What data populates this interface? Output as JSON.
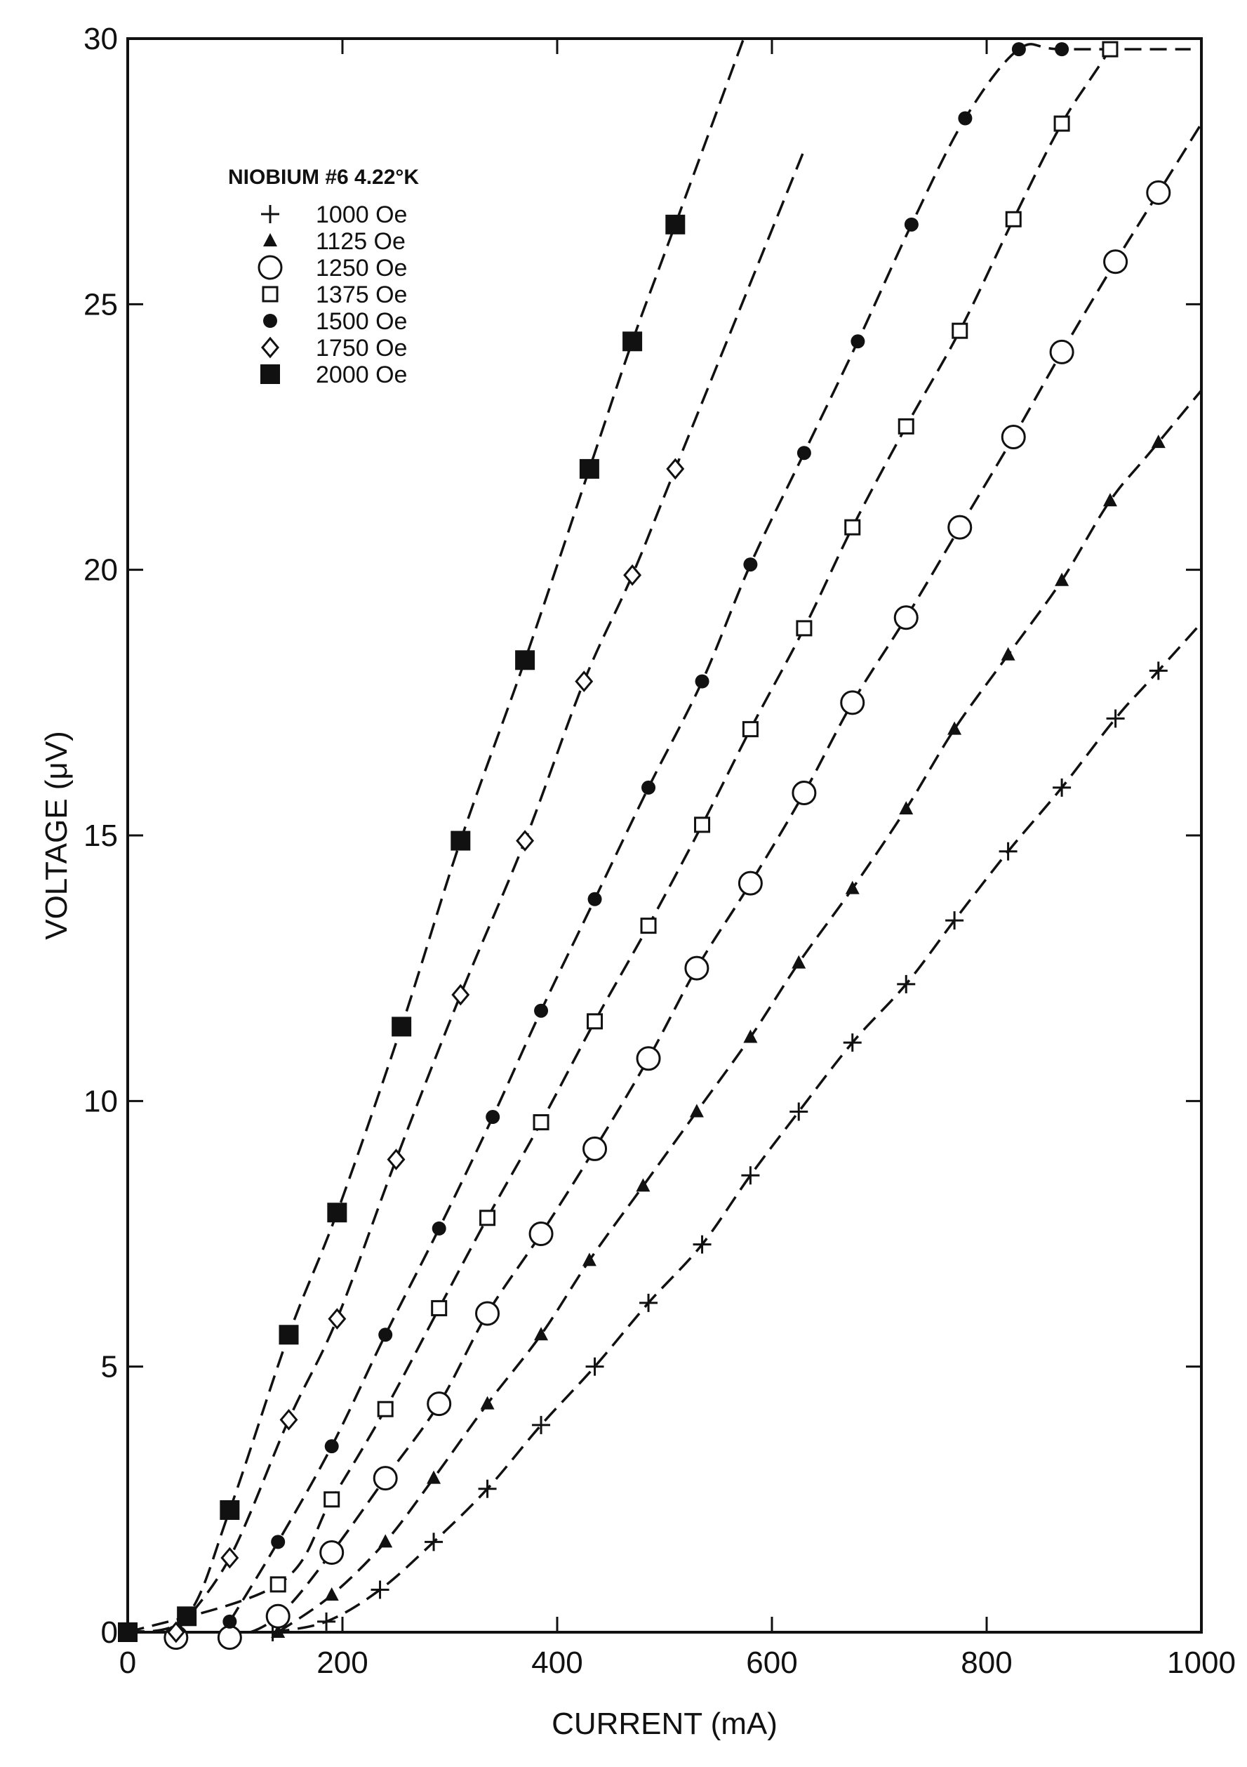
{
  "chart_data": {
    "type": "scatter",
    "title": "",
    "xlabel": "CURRENT (mA)",
    "ylabel": "VOLTAGE (μV)",
    "xlim": [
      0,
      1000
    ],
    "ylim": [
      0,
      30
    ],
    "xticks": [
      "0",
      "200",
      "400",
      "600",
      "800",
      "1000"
    ],
    "yticks": [
      "0",
      "5",
      "10",
      "15",
      "20",
      "25",
      "30"
    ],
    "grid": false,
    "legend_position": "top-left",
    "legend_title": "NIOBIUM #6  4.22°K",
    "series": [
      {
        "name": "1000 Oe",
        "marker": "cross",
        "x": [
          135,
          185,
          235,
          285,
          335,
          385,
          435,
          485,
          535,
          580,
          625,
          675,
          725,
          770,
          820,
          870,
          920,
          960
        ],
        "y": [
          0.0,
          0.2,
          0.8,
          1.7,
          2.7,
          3.9,
          5.0,
          6.2,
          7.3,
          8.6,
          9.8,
          11.1,
          12.2,
          13.4,
          14.7,
          15.9,
          17.2,
          18.1
        ]
      },
      {
        "name": "1125 Oe",
        "marker": "triangle-filled",
        "x": [
          140,
          190,
          240,
          285,
          335,
          385,
          430,
          480,
          530,
          580,
          625,
          675,
          725,
          770,
          820,
          870,
          915,
          960
        ],
        "y": [
          0.0,
          0.7,
          1.7,
          2.9,
          4.3,
          5.6,
          7.0,
          8.4,
          9.8,
          11.2,
          12.6,
          14.0,
          15.5,
          17.0,
          18.4,
          19.8,
          21.3,
          22.4
        ]
      },
      {
        "name": "1250 Oe",
        "marker": "circle-open",
        "x": [
          45,
          95,
          140,
          190,
          240,
          290,
          335,
          385,
          435,
          485,
          530,
          580,
          630,
          675,
          725,
          775,
          825,
          870,
          920,
          960
        ],
        "y": [
          -0.1,
          -0.1,
          0.3,
          1.5,
          2.9,
          4.3,
          6.0,
          7.5,
          9.1,
          10.8,
          12.5,
          14.1,
          15.8,
          17.5,
          19.1,
          20.8,
          22.5,
          24.1,
          25.8,
          27.1
        ]
      },
      {
        "name": "1375 Oe",
        "marker": "square-open",
        "x": [
          0,
          140,
          190,
          240,
          290,
          335,
          385,
          435,
          485,
          535,
          580,
          630,
          675,
          725,
          775,
          825,
          870,
          915
        ],
        "y": [
          0.0,
          0.9,
          2.5,
          4.2,
          6.1,
          7.8,
          9.6,
          11.5,
          13.3,
          15.2,
          17.0,
          18.9,
          20.8,
          22.7,
          24.5,
          26.6,
          28.4,
          29.8
        ]
      },
      {
        "name": "1500 Oe",
        "marker": "circle-filled",
        "x": [
          95,
          140,
          190,
          240,
          290,
          340,
          385,
          435,
          485,
          535,
          580,
          630,
          680,
          730,
          780,
          830,
          870
        ],
        "y": [
          0.2,
          1.7,
          3.5,
          5.6,
          7.6,
          9.7,
          11.7,
          13.8,
          15.9,
          17.9,
          20.1,
          22.2,
          24.3,
          26.5,
          28.5,
          29.8,
          29.8
        ]
      },
      {
        "name": "1750 Oe",
        "marker": "diamond-open",
        "x": [
          45,
          95,
          150,
          195,
          250,
          310,
          370,
          425,
          470,
          510
        ],
        "y": [
          0.0,
          1.4,
          4.0,
          5.9,
          8.9,
          12.0,
          14.9,
          17.9,
          19.9,
          21.9
        ]
      },
      {
        "name": "2000 Oe",
        "marker": "square-filled",
        "x": [
          0,
          55,
          95,
          150,
          195,
          255,
          310,
          370,
          430,
          470,
          510
        ],
        "y": [
          0.0,
          0.3,
          2.3,
          5.6,
          7.9,
          11.4,
          14.9,
          18.3,
          21.9,
          24.3,
          26.5
        ]
      }
    ]
  }
}
